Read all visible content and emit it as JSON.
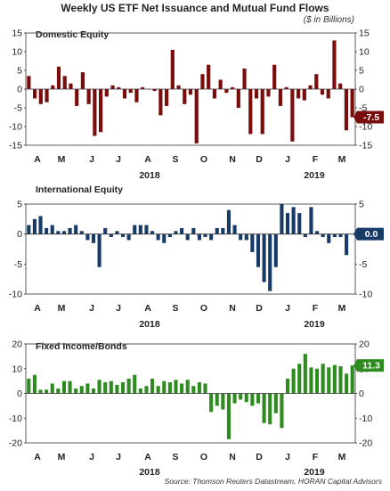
{
  "title": "Weekly US ETF Net Issuance and Mutual Fund Flows",
  "units_label": "($ in Billions)",
  "source": "Source: Thomson Reuters Datastream, HORAN Capital Advisors",
  "chart_data": [
    {
      "type": "bar",
      "title": "Domestic Equity",
      "color": "#7b0c0c",
      "ylim": [
        -15,
        15
      ],
      "yticks": [
        -15,
        -10,
        -5,
        0,
        5,
        10,
        15
      ],
      "month_labels": [
        "A",
        "M",
        "J",
        "J",
        "A",
        "S",
        "O",
        "N",
        "D",
        "J",
        "F",
        "M"
      ],
      "year_labels": [
        "2018",
        "2019"
      ],
      "callout": "-7.5",
      "values": [
        3.5,
        -2.5,
        -4,
        -3.5,
        1,
        6,
        3.5,
        1.5,
        -4.5,
        4.5,
        -4,
        -12.5,
        -11.5,
        -2,
        1,
        0.5,
        -2.5,
        -1,
        -3.5,
        0.5,
        0,
        -0.5,
        -7,
        -4.5,
        10.5,
        1,
        -4,
        -1.5,
        -14.5,
        4,
        6.5,
        -2.5,
        2.5,
        -1,
        0.5,
        -5,
        5.5,
        -12,
        -2.5,
        -12,
        -2,
        6.5,
        -4.5,
        0.5,
        -14,
        -2.5,
        -3,
        1,
        4,
        -1.5,
        -2.5,
        13,
        1.5,
        -11,
        -7.5
      ]
    },
    {
      "type": "bar",
      "title": "International Equity",
      "color": "#173a66",
      "ylim": [
        -10,
        5
      ],
      "yticks": [
        -10,
        -5,
        0,
        5
      ],
      "month_labels": [
        "A",
        "M",
        "J",
        "J",
        "A",
        "S",
        "O",
        "N",
        "D",
        "J",
        "F",
        "M"
      ],
      "year_labels": [
        "2018",
        "2019"
      ],
      "callout": "0.0",
      "values": [
        1.5,
        2.5,
        3,
        1,
        1.5,
        0.5,
        0.5,
        1,
        1.5,
        0.5,
        -1,
        -1.5,
        -5.5,
        1,
        -0.5,
        0.5,
        -0.5,
        -1,
        1.5,
        1.5,
        1.5,
        0.5,
        -1,
        -1.5,
        -0.5,
        0.5,
        1,
        -1,
        1,
        -1,
        -0.5,
        -1,
        1,
        1,
        4,
        1.5,
        -1,
        -1,
        -3,
        -5.5,
        -8,
        -9.5,
        -5.5,
        5,
        3.5,
        4.5,
        3.5,
        -0.5,
        4.5,
        0.5,
        -0.5,
        -1.5,
        -0.5,
        -0.5,
        -3.5,
        0
      ]
    },
    {
      "type": "bar",
      "title": "Fixed Income/Bonds",
      "color": "#2e8b1f",
      "ylim": [
        -20,
        20
      ],
      "yticks": [
        -20,
        -10,
        0,
        10,
        20
      ],
      "month_labels": [
        "A",
        "M",
        "J",
        "J",
        "A",
        "S",
        "O",
        "N",
        "D",
        "J",
        "F",
        "M"
      ],
      "year_labels": [
        "2018",
        "2019"
      ],
      "callout": "11.3",
      "values": [
        6,
        7.5,
        1.5,
        1.5,
        4,
        2,
        5,
        5,
        2,
        3,
        4,
        2,
        5.5,
        4.5,
        5,
        3.5,
        4.5,
        6,
        7.5,
        2,
        3,
        6,
        3,
        5,
        4.5,
        5.5,
        4,
        5.5,
        3,
        4.5,
        4,
        -7.5,
        -5,
        -6.5,
        -18.5,
        -4,
        -2.5,
        -3.5,
        -5,
        -4,
        -12,
        -12.5,
        -8,
        -14,
        6,
        10,
        12,
        16,
        10.5,
        10,
        12,
        10.5,
        11.5,
        11,
        8,
        11.3
      ]
    }
  ]
}
